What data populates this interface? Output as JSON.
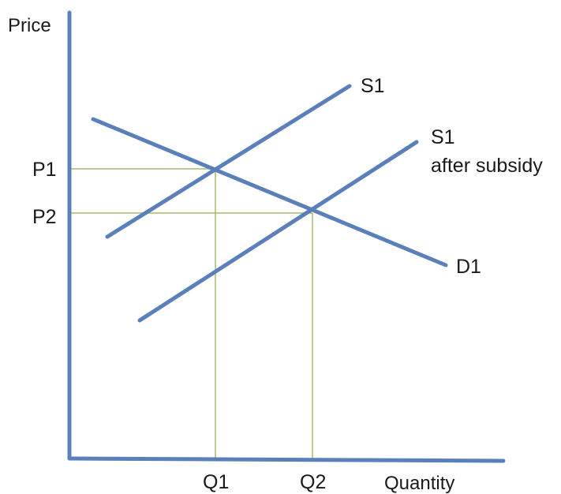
{
  "diagram": {
    "y_axis_label": "Price",
    "x_axis_label": "Quantity",
    "price_labels": {
      "p1": "P1",
      "p2": "P2"
    },
    "quantity_labels": {
      "q1": "Q1",
      "q2": "Q2"
    },
    "curves": {
      "supply_original": "S1",
      "supply_after_line1": "S1",
      "supply_after_line2": "after subsidy",
      "demand": "D1"
    },
    "colors": {
      "curve": "#5b7fba",
      "guide": "#a4bd6a",
      "text": "#1a1a1a"
    }
  }
}
